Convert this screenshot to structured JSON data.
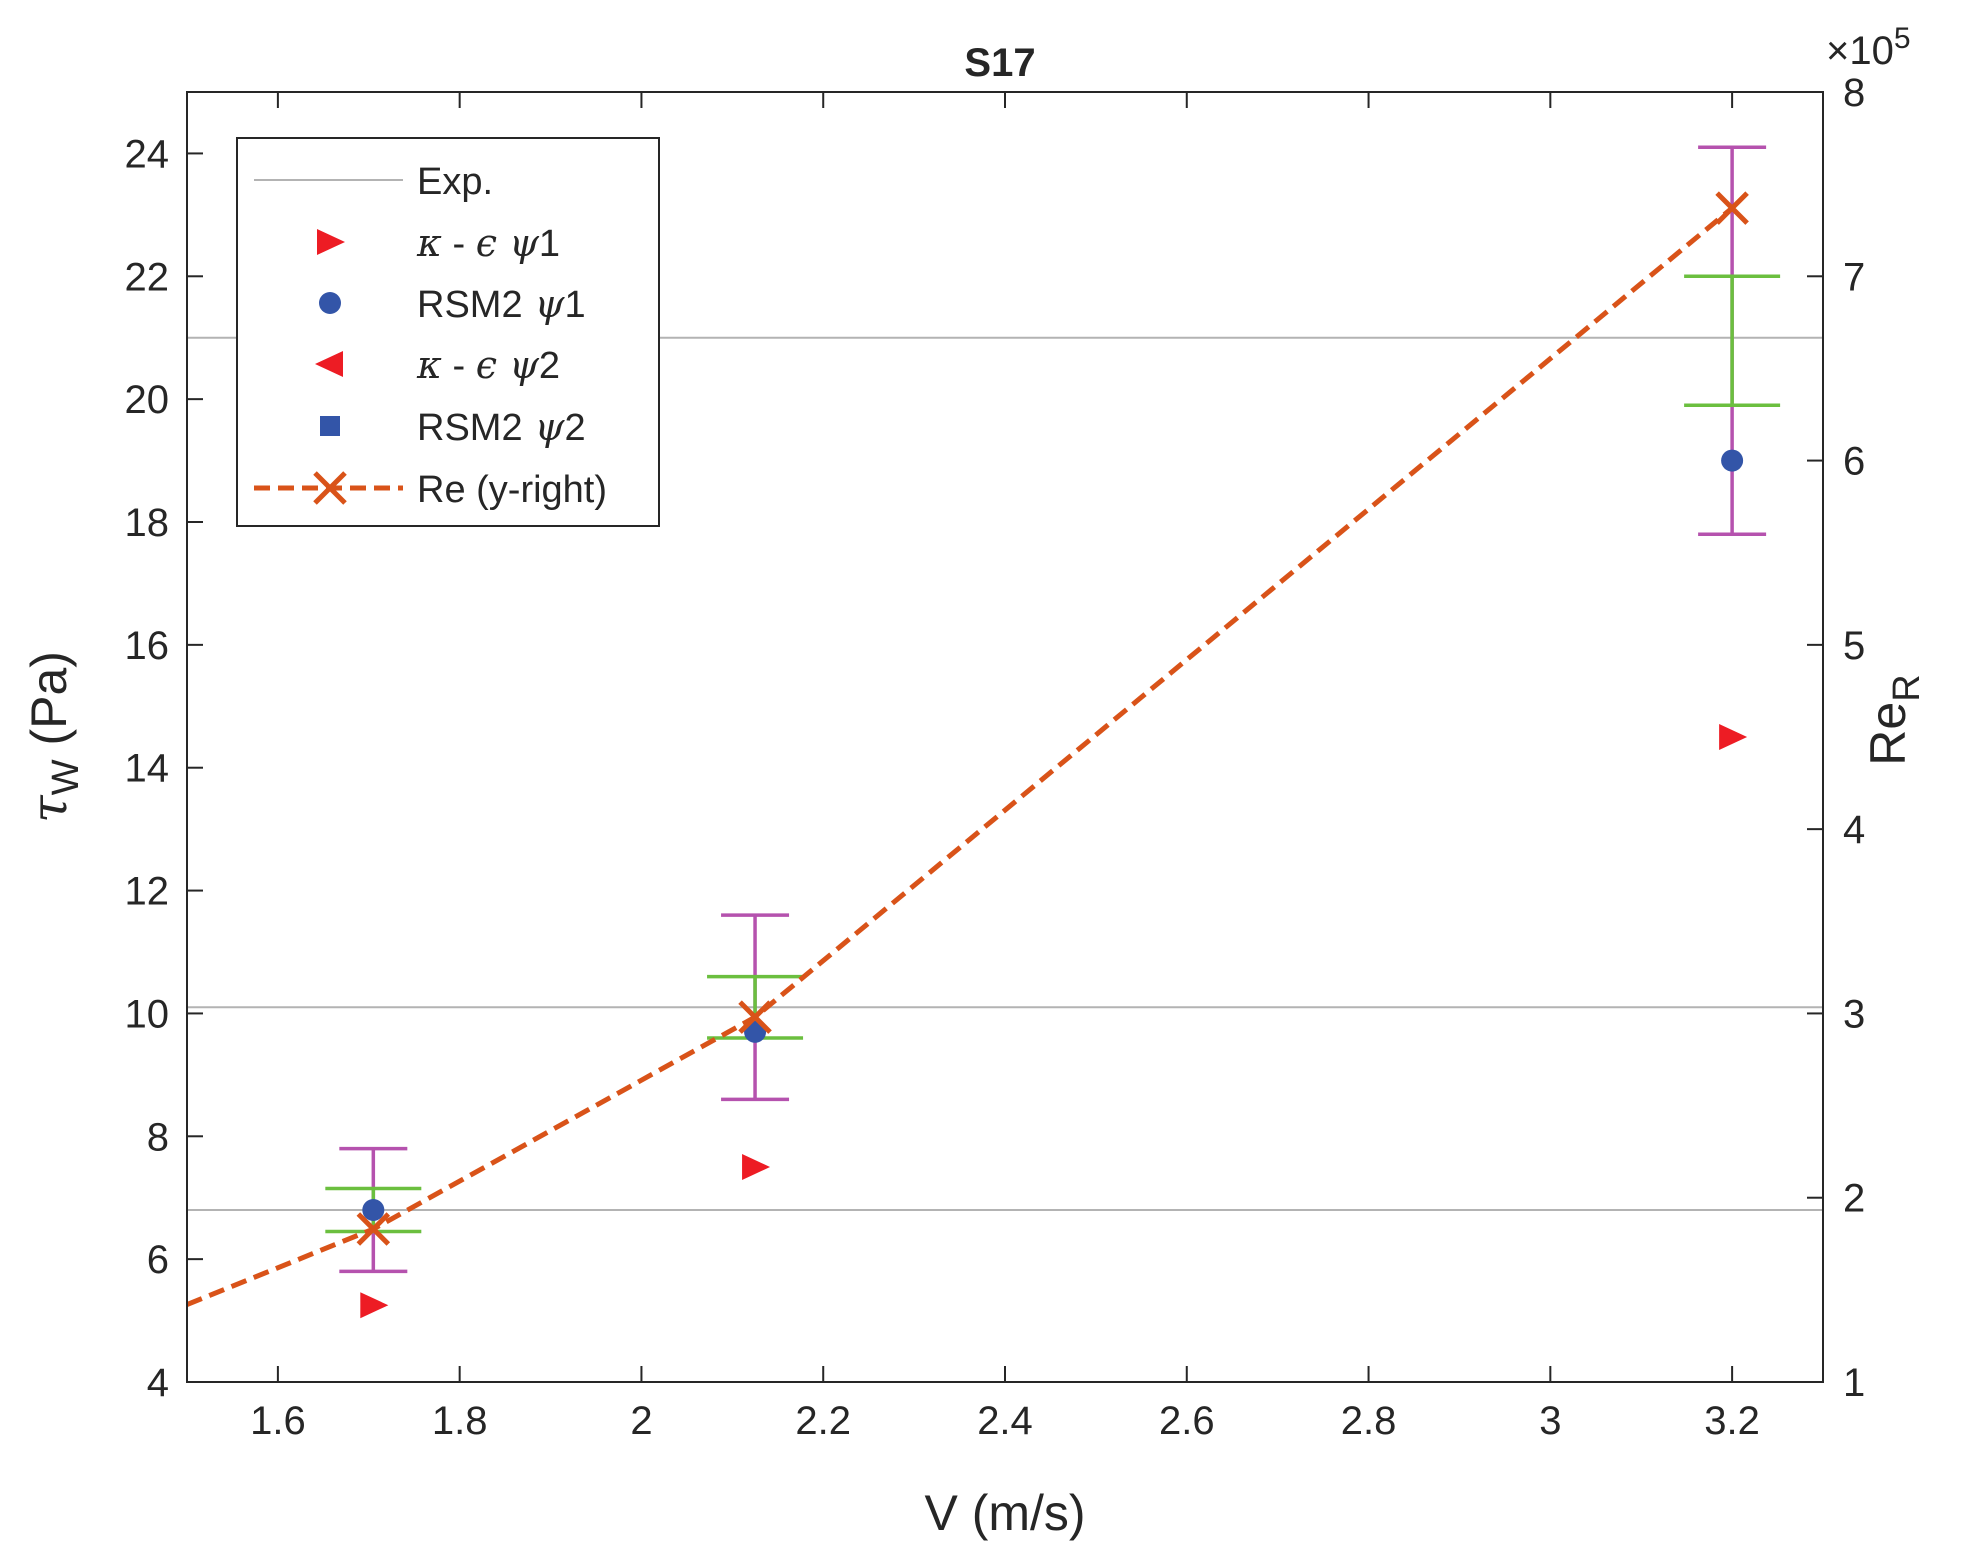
{
  "chart_data": {
    "type": "scatter",
    "title": "S17",
    "xlabel": "V  (m/s)",
    "ylabel": {
      "symbol": "τ",
      "sub": "W",
      "rest": "  (Pa)"
    },
    "y2label": {
      "base": "Re",
      "sub": "R"
    },
    "y2_multiplier": {
      "prefix": "×10",
      "exp": "5"
    },
    "xlim": [
      1.5,
      3.3
    ],
    "ylim": [
      4,
      25
    ],
    "y2lim": [
      1,
      8
    ],
    "x_ticks": [
      1.6,
      1.8,
      2.0,
      2.2,
      2.4,
      2.6,
      2.8,
      3.0,
      3.2
    ],
    "x_tick_labels": [
      "1.6",
      "1.8",
      "2",
      "2.2",
      "2.4",
      "2.6",
      "2.8",
      "3",
      "3.2"
    ],
    "y_ticks": [
      4,
      6,
      8,
      10,
      12,
      14,
      16,
      18,
      20,
      22,
      24
    ],
    "y_tick_labels": [
      "4",
      "6",
      "8",
      "10",
      "12",
      "14",
      "16",
      "18",
      "20",
      "22",
      "24"
    ],
    "y2_ticks": [
      1,
      2,
      3,
      4,
      5,
      6,
      7,
      8
    ],
    "y2_tick_labels": [
      "1",
      "2",
      "3",
      "4",
      "5",
      "6",
      "7",
      "8"
    ],
    "legend_position": "top-left",
    "series": [
      {
        "name": "Exp.",
        "kind": "hline",
        "color": "#b3b3b3",
        "y": [
          6.8,
          10.1,
          21.0
        ]
      },
      {
        "name": "κ - ϵ ψ1",
        "label_parts": [
          "κ",
          " - ",
          "ϵ",
          " ψ",
          "1"
        ],
        "kind": "marker",
        "marker": "triangle-right",
        "color": "#ed1c24",
        "x": [
          1.705,
          2.125,
          3.2
        ],
        "y": [
          5.25,
          7.5,
          14.5
        ]
      },
      {
        "name": "RSM2 ψ1",
        "label_parts": [
          "RSM2",
          " ψ",
          "1"
        ],
        "kind": "marker",
        "marker": "circle",
        "color": "#3355a8",
        "x": [
          1.705,
          2.125,
          3.2
        ],
        "y": [
          6.8,
          9.7,
          19.0
        ]
      },
      {
        "name": "κ - ϵ ψ2",
        "label_parts": [
          "κ",
          " - ",
          "ϵ",
          " ψ",
          "2"
        ],
        "kind": "marker",
        "marker": "triangle-left",
        "color": "#ed1c24",
        "x": [],
        "y": []
      },
      {
        "name": "RSM2 ψ2",
        "label_parts": [
          "RSM2",
          " ψ",
          "2"
        ],
        "kind": "marker",
        "marker": "square",
        "color": "#3355a8",
        "x": [],
        "y": []
      },
      {
        "name": "Re (y-right)",
        "kind": "line",
        "axis": "right",
        "color": "#d95319",
        "x": [
          1.5,
          1.705,
          2.125,
          3.2
        ],
        "y": [
          1.42,
          1.83,
          2.98,
          7.37
        ],
        "marker_x": [
          1.705,
          2.125,
          3.2
        ],
        "marker_y": [
          1.83,
          2.98,
          7.37
        ]
      }
    ],
    "error_bars": [
      {
        "group": "magenta",
        "color": "#b552ae",
        "x": 1.705,
        "low": 5.8,
        "high": 7.8
      },
      {
        "group": "magenta",
        "color": "#b552ae",
        "x": 2.125,
        "low": 8.6,
        "high": 11.6
      },
      {
        "group": "magenta",
        "color": "#b552ae",
        "x": 3.2,
        "low": 17.8,
        "high": 24.1
      },
      {
        "group": "green",
        "color": "#6bbf3f",
        "x": 1.705,
        "low": 6.45,
        "high": 7.15
      },
      {
        "group": "green",
        "color": "#6bbf3f",
        "x": 2.125,
        "low": 9.6,
        "high": 10.6
      },
      {
        "group": "green",
        "color": "#6bbf3f",
        "x": 3.2,
        "low": 19.9,
        "high": 22.0
      }
    ]
  }
}
